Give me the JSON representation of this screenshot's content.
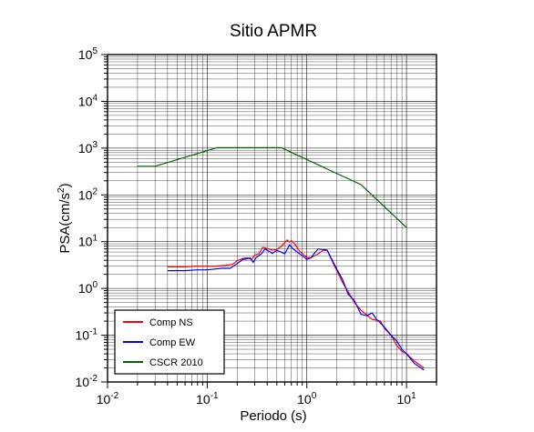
{
  "chart_data": {
    "type": "line",
    "title": "Sitio APMR",
    "xlabel": "Periodo (s)",
    "ylabel_main": "PSA(cm/s",
    "ylabel_sup": "2",
    "ylabel_close": ")",
    "x_scale": "log",
    "y_scale": "log",
    "xlim": [
      0.01,
      20
    ],
    "ylim": [
      0.01,
      100000
    ],
    "x_ticks": [
      {
        "base": "10",
        "exp": "-2",
        "value": 0.01
      },
      {
        "base": "10",
        "exp": "-1",
        "value": 0.1
      },
      {
        "base": "10",
        "exp": "0",
        "value": 1
      },
      {
        "base": "10",
        "exp": "1",
        "value": 10
      }
    ],
    "y_ticks": [
      {
        "base": "10",
        "exp": "-2",
        "value": 0.01
      },
      {
        "base": "10",
        "exp": "-1",
        "value": 0.1
      },
      {
        "base": "10",
        "exp": "0",
        "value": 1
      },
      {
        "base": "10",
        "exp": "1",
        "value": 10
      },
      {
        "base": "10",
        "exp": "2",
        "value": 100
      },
      {
        "base": "10",
        "exp": "3",
        "value": 1000
      },
      {
        "base": "10",
        "exp": "4",
        "value": 10000
      },
      {
        "base": "10",
        "exp": "5",
        "value": 100000
      }
    ],
    "grid": true,
    "legend_position": "bottom-left",
    "series": [
      {
        "name": "Comp NS",
        "color": "#ff0000",
        "points": [
          [
            0.04,
            2.9
          ],
          [
            0.06,
            2.9
          ],
          [
            0.08,
            3.0
          ],
          [
            0.1,
            3.0
          ],
          [
            0.12,
            3.0
          ],
          [
            0.15,
            3.1
          ],
          [
            0.18,
            3.3
          ],
          [
            0.2,
            3.9
          ],
          [
            0.23,
            4.4
          ],
          [
            0.25,
            4.5
          ],
          [
            0.28,
            4.2
          ],
          [
            0.3,
            5.2
          ],
          [
            0.33,
            5.5
          ],
          [
            0.36,
            7.5
          ],
          [
            0.4,
            7.2
          ],
          [
            0.45,
            6.6
          ],
          [
            0.5,
            6.8
          ],
          [
            0.55,
            7.8
          ],
          [
            0.6,
            9.5
          ],
          [
            0.63,
            10.9
          ],
          [
            0.67,
            9.8
          ],
          [
            0.7,
            10.5
          ],
          [
            0.75,
            9.0
          ],
          [
            0.8,
            7.5
          ],
          [
            0.85,
            6.2
          ],
          [
            0.9,
            5.6
          ],
          [
            0.95,
            5.0
          ],
          [
            1.0,
            4.6
          ],
          [
            1.1,
            4.5
          ],
          [
            1.2,
            5.0
          ],
          [
            1.3,
            5.5
          ],
          [
            1.45,
            6.5
          ],
          [
            1.6,
            6.5
          ],
          [
            1.8,
            3.8
          ],
          [
            2.0,
            2.4
          ],
          [
            2.3,
            1.3
          ],
          [
            2.6,
            0.85
          ],
          [
            3.0,
            0.5
          ],
          [
            3.5,
            0.34
          ],
          [
            4.0,
            0.27
          ],
          [
            4.5,
            0.22
          ],
          [
            5.0,
            0.21
          ],
          [
            5.5,
            0.2
          ],
          [
            6.0,
            0.14
          ],
          [
            7.0,
            0.1
          ],
          [
            8.0,
            0.06
          ],
          [
            9.0,
            0.045
          ],
          [
            10.0,
            0.04
          ],
          [
            12.0,
            0.028
          ],
          [
            15.0,
            0.02
          ]
        ]
      },
      {
        "name": "Comp EW",
        "color": "#0000ff",
        "points": [
          [
            0.04,
            2.4
          ],
          [
            0.06,
            2.4
          ],
          [
            0.08,
            2.5
          ],
          [
            0.1,
            2.5
          ],
          [
            0.12,
            2.6
          ],
          [
            0.14,
            2.7
          ],
          [
            0.17,
            2.7
          ],
          [
            0.2,
            3.4
          ],
          [
            0.23,
            4.2
          ],
          [
            0.25,
            4.3
          ],
          [
            0.27,
            4.5
          ],
          [
            0.29,
            3.6
          ],
          [
            0.31,
            4.6
          ],
          [
            0.35,
            5.5
          ],
          [
            0.38,
            7.0
          ],
          [
            0.42,
            6.2
          ],
          [
            0.45,
            5.6
          ],
          [
            0.5,
            6.5
          ],
          [
            0.55,
            6.0
          ],
          [
            0.6,
            5.5
          ],
          [
            0.67,
            8.5
          ],
          [
            0.72,
            7.2
          ],
          [
            0.8,
            6.0
          ],
          [
            0.9,
            5.0
          ],
          [
            1.0,
            4.2
          ],
          [
            1.1,
            4.5
          ],
          [
            1.2,
            5.8
          ],
          [
            1.3,
            7.0
          ],
          [
            1.45,
            6.8
          ],
          [
            1.6,
            6.6
          ],
          [
            1.8,
            4.0
          ],
          [
            2.0,
            2.6
          ],
          [
            2.3,
            1.5
          ],
          [
            2.6,
            0.75
          ],
          [
            3.0,
            0.55
          ],
          [
            3.5,
            0.28
          ],
          [
            4.0,
            0.26
          ],
          [
            4.5,
            0.3
          ],
          [
            5.0,
            0.22
          ],
          [
            5.5,
            0.18
          ],
          [
            6.0,
            0.15
          ],
          [
            7.0,
            0.1
          ],
          [
            8.0,
            0.075
          ],
          [
            9.0,
            0.05
          ],
          [
            10.0,
            0.04
          ],
          [
            12.0,
            0.025
          ],
          [
            15.0,
            0.018
          ]
        ]
      },
      {
        "name": "CSCR 2010",
        "color": "#006400",
        "points": [
          [
            0.02,
            410
          ],
          [
            0.03,
            410
          ],
          [
            0.125,
            1020
          ],
          [
            0.556,
            1020
          ],
          [
            3.5,
            165
          ],
          [
            10.0,
            20
          ]
        ]
      }
    ]
  }
}
